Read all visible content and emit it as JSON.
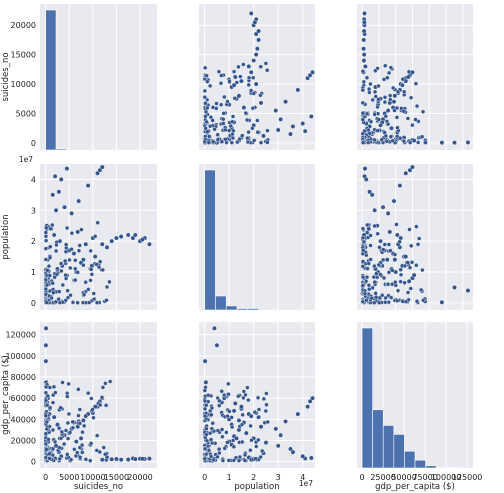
{
  "chart_data": {
    "type": "scatter",
    "kind": "pairplot",
    "variables": [
      "suicides_no",
      "population",
      "gdp_per_capita ($)"
    ],
    "grid": true,
    "style": {
      "background": "#e9e9f0",
      "grid": "#ffffff",
      "marker": "#34558c",
      "bar": "#4c72b0",
      "marker_edge": "#ffffff"
    },
    "axes": {
      "suicides_no": {
        "label": "suicides_no",
        "range": [
          -1200,
          23600
        ],
        "ticks": [
          0,
          5000,
          10000,
          15000,
          20000
        ],
        "tick_labels": [
          "0",
          "5000",
          "10000",
          "15000",
          "20000"
        ],
        "offset_text": ""
      },
      "population": {
        "label": "population",
        "range": [
          -2300000,
          45000000
        ],
        "ticks": [
          0,
          10000000,
          20000000,
          30000000,
          40000000
        ],
        "tick_labels": [
          "0",
          "1",
          "2",
          "3",
          "4"
        ],
        "offset_text": "1e7"
      },
      "gdp_per_capita ($)": {
        "label": "gdp_per_capita ($)",
        "range": [
          -6000,
          132000
        ],
        "ticks": [
          0,
          20000,
          40000,
          60000,
          80000,
          100000,
          120000
        ],
        "tick_labels": [
          "0",
          "20000",
          "40000",
          "60000",
          "80000",
          "100000",
          "120000"
        ],
        "diag_ticks": [
          0,
          25000,
          50000,
          75000,
          100000,
          125000
        ],
        "diag_tick_labels": [
          "0",
          "25000",
          "50000",
          "75000",
          "100000",
          "125000"
        ],
        "offset_text": ""
      }
    },
    "histograms": {
      "suicides_no": {
        "bins": [
          [
            0,
            2200
          ],
          [
            2200,
            4400
          ]
        ],
        "counts": [
          27500,
          230
        ]
      },
      "population": {
        "bins": [
          [
            0,
            4400000
          ],
          [
            4400000,
            8800000
          ],
          [
            8800000,
            13200000
          ],
          [
            13200000,
            17600000
          ],
          [
            17600000,
            22000000
          ]
        ],
        "counts": [
          24000,
          2400,
          700,
          250,
          260
        ]
      },
      "gdp_per_capita ($)": {
        "bins": [
          [
            0,
            12600
          ],
          [
            12600,
            25200
          ],
          [
            25200,
            37800
          ],
          [
            37800,
            50400
          ],
          [
            50400,
            63000
          ],
          [
            63000,
            75600
          ],
          [
            75600,
            88200
          ],
          [
            88200,
            100800
          ],
          [
            100800,
            113400
          ],
          [
            113400,
            126000
          ]
        ],
        "counts": [
          12500,
          5200,
          3800,
          3000,
          1500,
          700,
          200,
          60,
          30,
          10
        ]
      }
    },
    "observations": [
      [
        100,
        0.3,
        500
      ],
      [
        250,
        2.5,
        18000
      ],
      [
        400,
        1.4,
        30000
      ],
      [
        600,
        1.0,
        40000
      ],
      [
        800,
        1.8,
        45000
      ],
      [
        1200,
        2.4,
        8000
      ],
      [
        1500,
        3.5,
        12000
      ],
      [
        2000,
        4.1,
        3000
      ],
      [
        500,
        0.8,
        60000
      ],
      [
        300,
        0.7,
        56000
      ],
      [
        50,
        0.5,
        110000
      ],
      [
        80,
        0.4,
        126000
      ],
      [
        4000,
        3.1,
        25000
      ],
      [
        5500,
        2.9,
        31000
      ],
      [
        7000,
        3.3,
        38000
      ],
      [
        9000,
        3.8,
        45000
      ],
      [
        11000,
        4.2,
        52000
      ],
      [
        11500,
        4.3,
        57000
      ],
      [
        12000,
        4.4,
        60000
      ],
      [
        3500,
        1.2,
        24000
      ],
      [
        6000,
        1.6,
        37000
      ],
      [
        8500,
        1.9,
        43000
      ],
      [
        10000,
        2.1,
        46000
      ],
      [
        2500,
        1.1,
        35000
      ],
      [
        3000,
        2.0,
        22000
      ],
      [
        15000,
        2.1,
        2500
      ],
      [
        17500,
        2.2,
        2000
      ],
      [
        18500,
        2.1,
        3000
      ],
      [
        20000,
        2.0,
        2800
      ],
      [
        21000,
        2.1,
        2600
      ],
      [
        22000,
        1.9,
        2900
      ],
      [
        20500,
        2.05,
        2700
      ],
      [
        13000,
        1.8,
        4000
      ],
      [
        9500,
        1.1,
        16000
      ],
      [
        7500,
        1.3,
        22000
      ],
      [
        6500,
        1.0,
        19000
      ],
      [
        1000,
        0.2,
        8000
      ],
      [
        200,
        0.15,
        14000
      ],
      [
        100,
        0.05,
        75000
      ],
      [
        50,
        0.02,
        95000
      ],
      [
        12000,
        1.9,
        1800
      ],
      [
        14000,
        2.0,
        2200
      ],
      [
        16000,
        2.15,
        1900
      ],
      [
        19000,
        2.2,
        2400
      ],
      [
        700,
        0.6,
        28000
      ],
      [
        900,
        1.5,
        50000
      ],
      [
        1800,
        2.2,
        42000
      ],
      [
        2200,
        3.0,
        15000
      ],
      [
        2800,
        3.6,
        9000
      ],
      [
        3300,
        4.0,
        5000
      ],
      [
        4500,
        4.35,
        3500
      ],
      [
        5000,
        1.7,
        27000
      ],
      [
        6800,
        2.3,
        33000
      ],
      [
        8000,
        1.4,
        39000
      ],
      [
        9800,
        1.2,
        48000
      ],
      [
        10500,
        1.5,
        52000
      ],
      [
        11200,
        1.25,
        55000
      ],
      [
        400,
        0.9,
        62000
      ],
      [
        150,
        0.1,
        40000
      ],
      [
        60,
        0.06,
        20000
      ]
    ],
    "observation_fields": [
      "suicides_no",
      "population (1e7)",
      "gdp_per_capita ($)"
    ]
  }
}
